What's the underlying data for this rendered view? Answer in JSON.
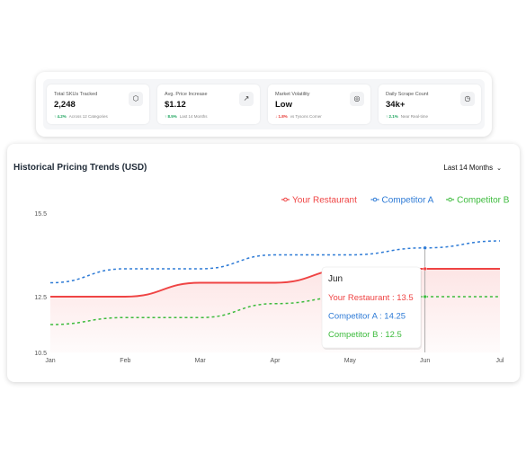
{
  "stats": [
    {
      "label": "Total SKUs Tracked",
      "value": "2,248",
      "delta": "↑ 4.2%",
      "delta_dir": "up",
      "sub": "Across 12 Categories",
      "icon": "cube-icon",
      "glyph": "⬡"
    },
    {
      "label": "Avg. Price Increase",
      "value": "$1.12",
      "delta": "↑ 8.5%",
      "delta_dir": "up",
      "sub": "Last 14 Months",
      "icon": "trend-up-icon",
      "glyph": "↗"
    },
    {
      "label": "Market Volatility",
      "value": "Low",
      "delta": "↓ 1.8%",
      "delta_dir": "down",
      "sub": "vs Tysons Corner",
      "icon": "gauge-icon",
      "glyph": "◎"
    },
    {
      "label": "Daily Scrape Count",
      "value": "34k+",
      "delta": "↑ 2.1%",
      "delta_dir": "up",
      "sub": "Near Real-time",
      "icon": "clock-icon",
      "glyph": "◷"
    }
  ],
  "chart": {
    "title": "Historical Pricing Trends (USD)",
    "range_label": "Last 14 Months"
  },
  "chart_data": {
    "type": "line",
    "x": [
      "Jan",
      "Feb",
      "Mar",
      "Apr",
      "May",
      "Jun",
      "Jul"
    ],
    "yticks": [
      10.5,
      12.5,
      15.5
    ],
    "ylim": [
      10.5,
      15.5
    ],
    "series": [
      {
        "name": "Your Restaurant",
        "color": "#ef4444",
        "style": "solid",
        "fill": true,
        "values": [
          12.5,
          12.5,
          13.0,
          13.0,
          13.5,
          13.5,
          13.5
        ]
      },
      {
        "name": "Competitor A",
        "color": "#2e7bd6",
        "style": "dashed",
        "fill": false,
        "values": [
          13.0,
          13.5,
          13.5,
          14.0,
          14.0,
          14.25,
          14.5
        ]
      },
      {
        "name": "Competitor B",
        "color": "#3dbb3d",
        "style": "dashed",
        "fill": false,
        "values": [
          11.5,
          11.75,
          11.75,
          12.25,
          12.5,
          12.5,
          12.5
        ]
      }
    ],
    "tooltip": {
      "month": "Jun",
      "lines": [
        "Your Restaurant : 13.5",
        "Competitor A : 14.25",
        "Competitor B : 12.5"
      ]
    },
    "legend_position": "top-right",
    "grid": false
  }
}
